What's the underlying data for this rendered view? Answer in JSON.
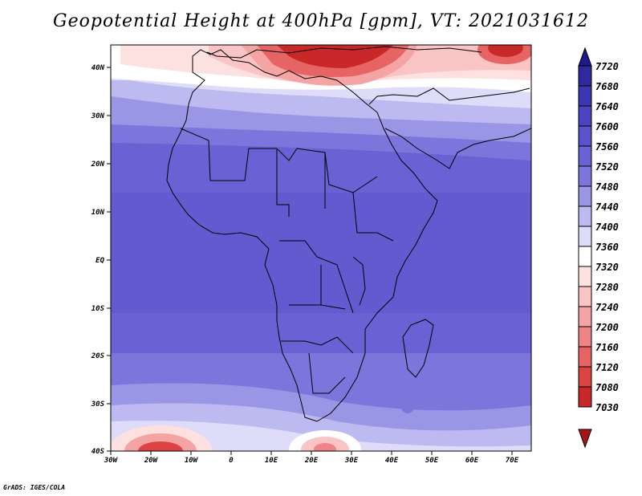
{
  "title": "Geopotential Height at 400hPa [gpm], VT: 2021031612",
  "footer": "GrADS: IGES/COLA",
  "map": {
    "lat_labels": [
      "40N",
      "30N",
      "20N",
      "10N",
      "EQ",
      "10S",
      "20S",
      "30S",
      "40S"
    ],
    "lon_labels": [
      "30W",
      "20W",
      "10W",
      "0",
      "10E",
      "20E",
      "30E",
      "40E",
      "50E",
      "60E",
      "70E"
    ]
  },
  "colorbar": {
    "levels": [
      "7720",
      "7680",
      "7640",
      "7600",
      "7560",
      "7520",
      "7480",
      "7440",
      "7400",
      "7360",
      "7320",
      "7280",
      "7240",
      "7200",
      "7160",
      "7120",
      "7080",
      "7030"
    ],
    "colors": [
      "#1e1a8a",
      "#2e2a9e",
      "#3c36b2",
      "#4a44c4",
      "#5a52cc",
      "#6a62d4",
      "#7c76dc",
      "#9a96e6",
      "#bcbaf0",
      "#dedcf8",
      "#ffffff",
      "#fde0e0",
      "#fac4c4",
      "#f5a4a4",
      "#ee8484",
      "#e66464",
      "#dc4444",
      "#c82828",
      "#a81414"
    ]
  }
}
